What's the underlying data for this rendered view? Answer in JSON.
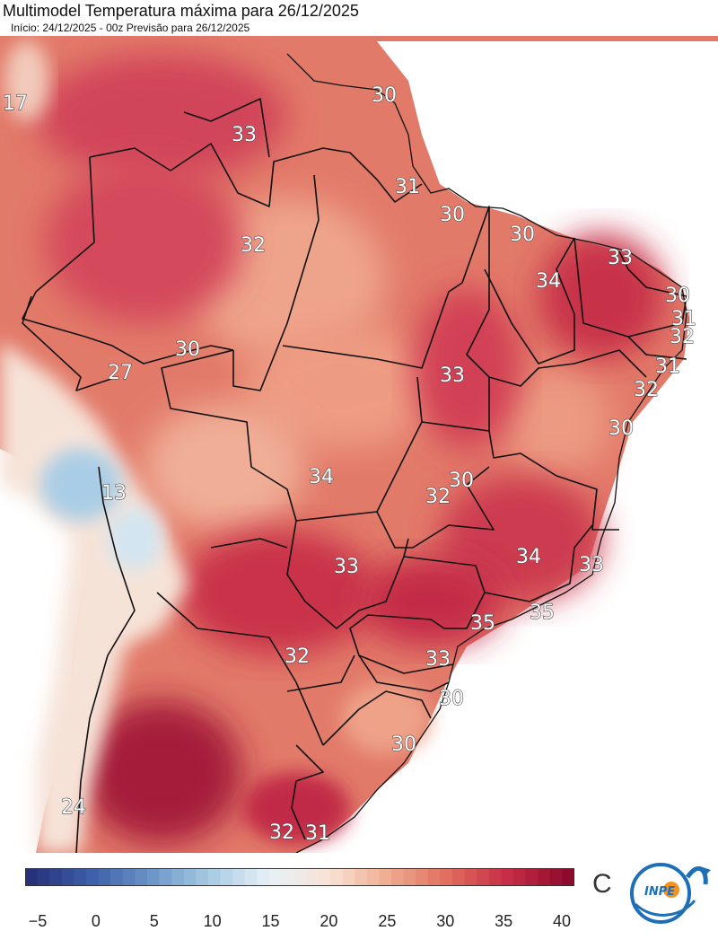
{
  "header": {
    "title": "Multimodel Temperatura máxima para 26/12/2025",
    "subtitle": "Início: 24/12/2025 - 00z  Previsão para 26/12/2025"
  },
  "map": {
    "labels": [
      {
        "id": "17",
        "text": "17"
      },
      {
        "id": "33a",
        "text": "33"
      },
      {
        "id": "30a",
        "text": "30"
      },
      {
        "id": "31a",
        "text": "31"
      },
      {
        "id": "30b",
        "text": "30"
      },
      {
        "id": "30c",
        "text": "30"
      },
      {
        "id": "33b",
        "text": "33"
      },
      {
        "id": "32a",
        "text": "32"
      },
      {
        "id": "34a",
        "text": "34"
      },
      {
        "id": "30d",
        "text": "30"
      },
      {
        "id": "31b",
        "text": "31"
      },
      {
        "id": "32b",
        "text": "32"
      },
      {
        "id": "31c",
        "text": "31"
      },
      {
        "id": "32c",
        "text": "32"
      },
      {
        "id": "30e",
        "text": "30"
      },
      {
        "id": "27",
        "text": "27"
      },
      {
        "id": "30f",
        "text": "30"
      },
      {
        "id": "33c",
        "text": "33"
      },
      {
        "id": "13",
        "text": "13"
      },
      {
        "id": "34b",
        "text": "34"
      },
      {
        "id": "30g",
        "text": "30"
      },
      {
        "id": "32d",
        "text": "32"
      },
      {
        "id": "33d",
        "text": "33"
      },
      {
        "id": "34c",
        "text": "34"
      },
      {
        "id": "33e",
        "text": "33"
      },
      {
        "id": "35a",
        "text": "35"
      },
      {
        "id": "35b",
        "text": "35"
      },
      {
        "id": "32e",
        "text": "32"
      },
      {
        "id": "33f",
        "text": "33"
      },
      {
        "id": "30h",
        "text": "30"
      },
      {
        "id": "30i",
        "text": "30"
      },
      {
        "id": "24",
        "text": "24"
      },
      {
        "id": "32f",
        "text": "32"
      },
      {
        "id": "31d",
        "text": "31"
      }
    ]
  },
  "colorbar": {
    "ticks": [
      "−5",
      "0",
      "5",
      "10",
      "15",
      "20",
      "25",
      "30",
      "35",
      "40"
    ],
    "unit": "C",
    "min": -5,
    "max": 40,
    "colors": [
      "#27327a",
      "#3d5ea8",
      "#6b95c8",
      "#a8cbe4",
      "#e8f1f7",
      "#f8e2d4",
      "#efab8e",
      "#e06b5c",
      "#c62c45",
      "#8c0a2c"
    ]
  },
  "logo": {
    "text": "INPE"
  }
}
